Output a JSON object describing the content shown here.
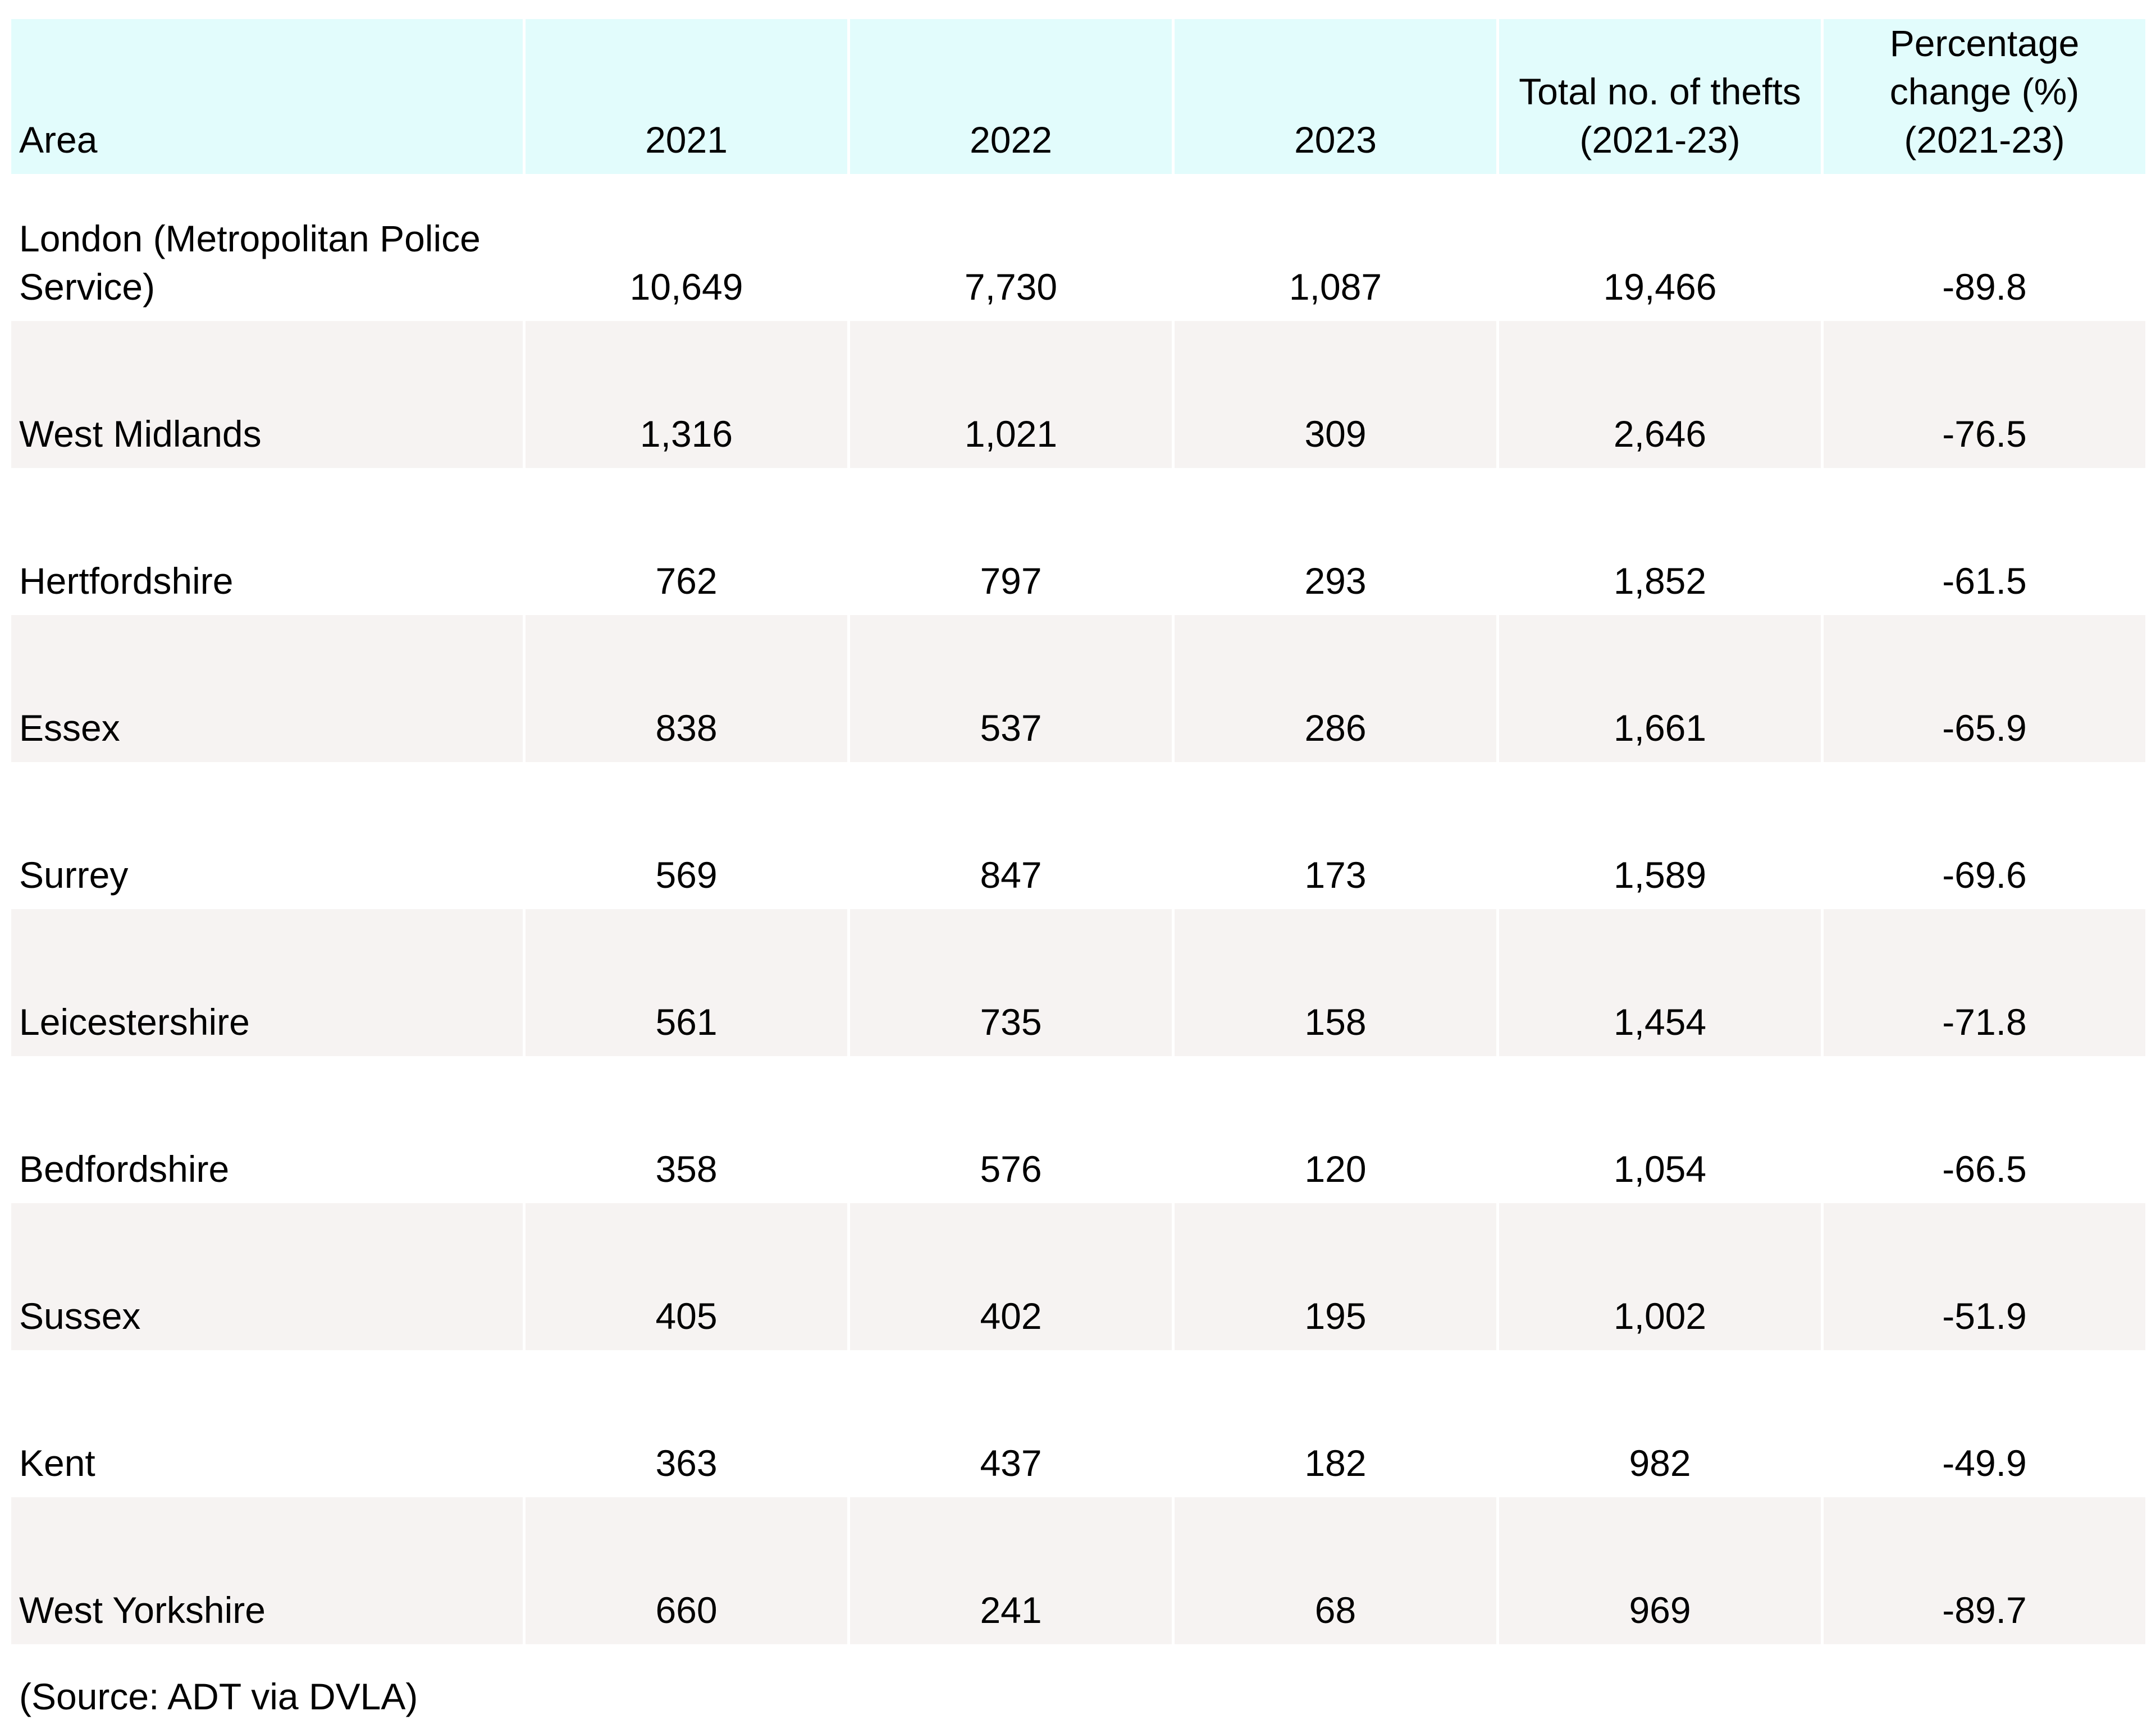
{
  "table": {
    "header": [
      [
        "Area"
      ],
      [
        "2021"
      ],
      [
        "2022"
      ],
      [
        "2023"
      ],
      [
        "Total no. of thefts",
        "(2021-23)"
      ],
      [
        "Percentage",
        "change (%)",
        "(2021-23)"
      ]
    ],
    "rows": [
      [
        [
          "London (Metropolitan Police",
          "Service)"
        ],
        "10,649",
        "7,730",
        "1,087",
        "19,466",
        "-89.8"
      ],
      [
        [
          "West Midlands"
        ],
        "1,316",
        "1,021",
        "309",
        "2,646",
        "-76.5"
      ],
      [
        [
          "Hertfordshire"
        ],
        "762",
        "797",
        "293",
        "1,852",
        "-61.5"
      ],
      [
        [
          "Essex"
        ],
        "838",
        "537",
        "286",
        "1,661",
        "-65.9"
      ],
      [
        [
          "Surrey"
        ],
        "569",
        "847",
        "173",
        "1,589",
        "-69.6"
      ],
      [
        [
          "Leicestershire"
        ],
        "561",
        "735",
        "158",
        "1,454",
        "-71.8"
      ],
      [
        [
          "Bedfordshire"
        ],
        "358",
        "576",
        "120",
        "1,054",
        "-66.5"
      ],
      [
        [
          "Sussex"
        ],
        "405",
        "402",
        "195",
        "1,002",
        "-51.9"
      ],
      [
        [
          "Kent"
        ],
        "363",
        "437",
        "182",
        "982",
        "-49.9"
      ],
      [
        [
          "West Yorkshire"
        ],
        "660",
        "241",
        "68",
        "969",
        "-89.7"
      ]
    ]
  },
  "source": "(Source: ADT via DVLA)"
}
